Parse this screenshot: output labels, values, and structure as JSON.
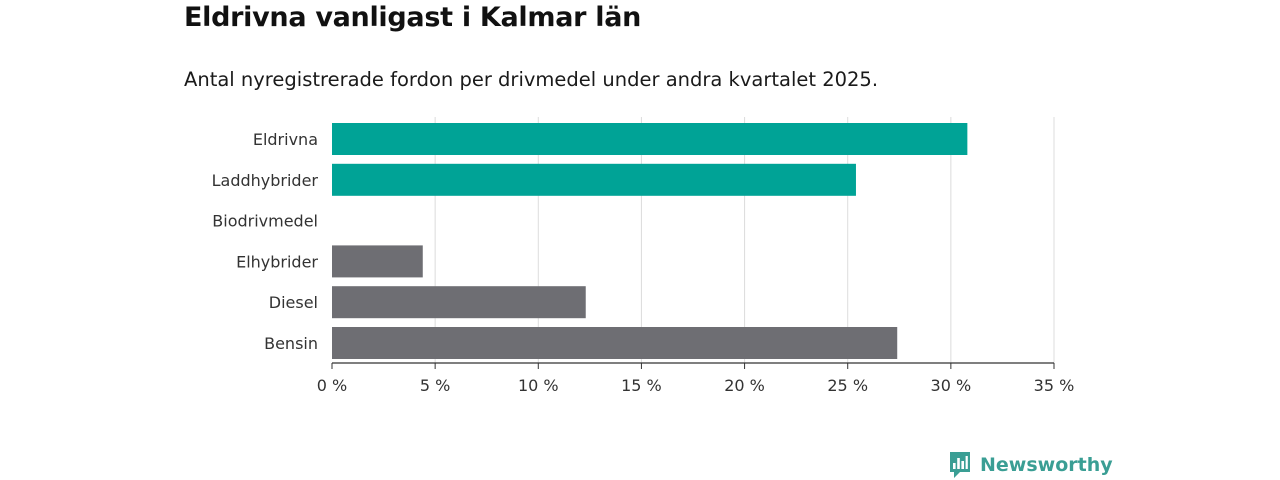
{
  "header": {
    "title": "Eldrivna vanligast i Kalmar län",
    "subtitle": "Antal nyregistrerade fordon per drivmedel under andra kvartalet 2025."
  },
  "chart_data": {
    "type": "bar",
    "orientation": "horizontal",
    "categories": [
      "Eldrivna",
      "Laddhybrider",
      "Biodrivmedel",
      "Elhybrider",
      "Diesel",
      "Bensin"
    ],
    "values": [
      30.8,
      25.4,
      0,
      4.4,
      12.3,
      27.4
    ],
    "colors": [
      "#00a396",
      "#00a396",
      "#6e6e73",
      "#6e6e73",
      "#6e6e73",
      "#6e6e73"
    ],
    "xlim": [
      0,
      35
    ],
    "xticks": [
      0,
      5,
      10,
      15,
      20,
      25,
      30,
      35
    ],
    "xtick_labels": [
      "0 %",
      "5 %",
      "10 %",
      "15 %",
      "20 %",
      "25 %",
      "30 %",
      "35 %"
    ],
    "grid": true
  },
  "brand": {
    "name": "Newsworthy",
    "icon": "newsworthy-logo-icon",
    "color": "#3a9e94"
  }
}
